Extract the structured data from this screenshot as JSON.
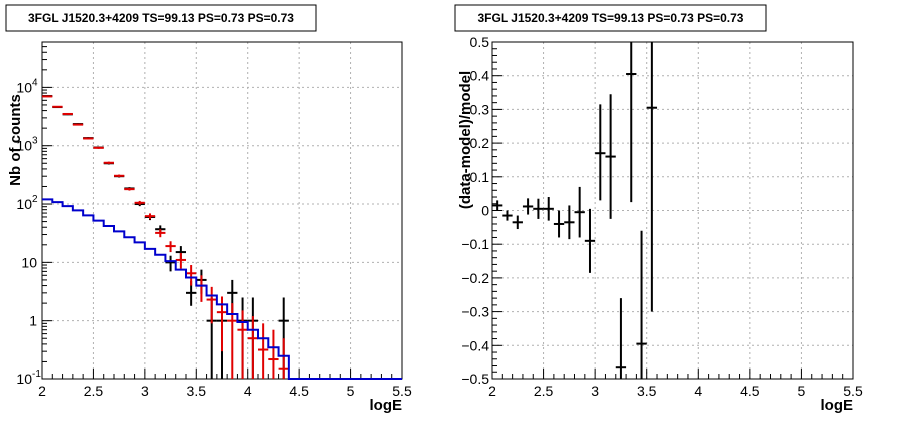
{
  "chart_data": [
    {
      "type": "line",
      "title": "3FGL J1520.3+4209 TS=99.13 PS=0.73 PS=0.73",
      "xlabel": "logE",
      "ylabel": "Nb of counts",
      "xlim": [
        2,
        5.5
      ],
      "ylim": [
        0.1,
        60000
      ],
      "log_y": true,
      "grid": true,
      "x_ticks": [
        "2",
        "2.5",
        "3",
        "3.5",
        "4",
        "4.5",
        "5",
        "5.5"
      ],
      "y_ticks": [
        {
          "value": 0.1,
          "label": "10",
          "exp": "-1"
        },
        {
          "value": 1,
          "label": "1",
          "exp": ""
        },
        {
          "value": 10,
          "label": "10",
          "exp": ""
        },
        {
          "value": 100,
          "label": "10",
          "exp": "2"
        },
        {
          "value": 1000,
          "label": "10",
          "exp": "3"
        },
        {
          "value": 10000,
          "label": "10",
          "exp": "4"
        }
      ],
      "colors": {
        "data": "#000000",
        "model_points": "#e00000",
        "background_model": "#0000cc"
      },
      "series": [
        {
          "kind": "errorbar",
          "color": "#000000",
          "x": [
            2.05,
            2.15,
            2.25,
            2.35,
            2.45,
            2.55,
            2.65,
            2.75,
            2.85,
            2.95,
            3.05,
            3.15,
            3.25,
            3.35,
            3.45,
            3.55,
            3.65,
            3.75,
            3.85,
            3.95,
            4.05,
            4.15,
            4.25,
            4.35
          ],
          "y": [
            7100,
            4600,
            3450,
            2350,
            1350,
            930,
            500,
            300,
            185,
            100,
            60,
            37,
            10,
            15,
            3,
            5,
            1,
            1,
            3,
            1,
            1,
            0,
            0,
            1
          ],
          "y_low": [
            6950,
            4480,
            3350,
            2270,
            1300,
            895,
            477,
            285,
            175,
            92,
            53,
            31,
            7,
            11,
            1.8,
            2.9,
            0.1,
            0.1,
            1.3,
            0.1,
            0.1,
            0,
            0,
            0.1
          ],
          "y_high": [
            7250,
            4720,
            3550,
            2430,
            1400,
            965,
            523,
            315,
            195,
            108,
            67,
            43,
            13,
            19,
            4.8,
            7.5,
            2.5,
            2.5,
            5,
            2.5,
            2.5,
            0,
            0,
            2.5
          ]
        },
        {
          "kind": "errorbar",
          "color": "#e00000",
          "x": [
            2.05,
            2.15,
            2.25,
            2.35,
            2.45,
            2.55,
            2.65,
            2.75,
            2.85,
            2.95,
            3.05,
            3.15,
            3.25,
            3.35,
            3.45,
            3.55,
            3.65,
            3.75,
            3.85,
            3.95,
            4.05,
            4.15,
            4.25,
            4.35
          ],
          "y": [
            7000,
            4650,
            3500,
            2300,
            1330,
            920,
            510,
            305,
            180,
            105,
            62,
            32,
            19,
            11,
            6.5,
            4,
            2.3,
            1.4,
            1,
            0.7,
            0.5,
            0.32,
            0.22,
            0.15
          ],
          "y_low": [
            6850,
            4530,
            3400,
            2220,
            1280,
            885,
            487,
            290,
            170,
            97,
            55,
            27,
            15,
            7.8,
            4,
            2.1,
            0.9,
            0.3,
            0.1,
            0.1,
            0.1,
            0.1,
            0.1,
            0.1
          ],
          "y_high": [
            7150,
            4770,
            3600,
            2380,
            1380,
            955,
            533,
            320,
            190,
            113,
            69,
            37,
            23,
            14.5,
            9,
            6,
            3.8,
            2.6,
            2,
            1.5,
            1.2,
            0.9,
            0.7,
            0.5
          ]
        },
        {
          "kind": "step",
          "color": "#0000cc",
          "x_edges": [
            2.0,
            2.1,
            2.2,
            2.3,
            2.4,
            2.5,
            2.6,
            2.7,
            2.8,
            2.9,
            3.0,
            3.1,
            3.2,
            3.3,
            3.4,
            3.5,
            3.6,
            3.7,
            3.8,
            3.9,
            4.0,
            4.1,
            4.2,
            4.3,
            4.4,
            5.5
          ],
          "y": [
            120,
            108,
            92,
            78,
            64,
            52,
            42,
            34,
            27,
            22,
            17,
            13.5,
            10.5,
            7.5,
            5.5,
            4,
            2.7,
            1.9,
            1.3,
            0.95,
            0.7,
            0.5,
            0.35,
            0.25,
            0.1
          ]
        }
      ]
    },
    {
      "type": "scatter",
      "title": "3FGL J1520.3+4209 TS=99.13 PS=0.73 PS=0.73",
      "xlabel": "logE",
      "ylabel": "(data-model)/model",
      "xlim": [
        2,
        5.5
      ],
      "ylim": [
        -0.5,
        0.5
      ],
      "grid": true,
      "x_ticks": [
        "2",
        "2.5",
        "3",
        "3.5",
        "4",
        "4.5",
        "5",
        "5.5"
      ],
      "y_ticks": [
        {
          "value": -0.5,
          "label": "−0.5"
        },
        {
          "value": -0.4,
          "label": "−0.4"
        },
        {
          "value": -0.3,
          "label": "−0.3"
        },
        {
          "value": -0.2,
          "label": "−0.2"
        },
        {
          "value": -0.1,
          "label": "−0.1"
        },
        {
          "value": 0,
          "label": "0"
        },
        {
          "value": 0.1,
          "label": "0.1"
        },
        {
          "value": 0.2,
          "label": "0.2"
        },
        {
          "value": 0.3,
          "label": "0.3"
        },
        {
          "value": 0.4,
          "label": "0.4"
        },
        {
          "value": 0.5,
          "label": "0.5"
        }
      ],
      "series": [
        {
          "kind": "errorbar",
          "color": "#000000",
          "x": [
            2.05,
            2.15,
            2.25,
            2.35,
            2.45,
            2.55,
            2.65,
            2.75,
            2.85,
            2.95,
            3.05,
            3.15,
            3.25,
            3.35,
            3.45,
            3.55
          ],
          "y": [
            0.015,
            -0.015,
            -0.035,
            0.012,
            0.005,
            0.005,
            -0.04,
            -0.035,
            -0.005,
            -0.09,
            0.17,
            0.16,
            -0.465,
            0.405,
            -0.395,
            0.305
          ],
          "y_low": [
            0.0,
            -0.03,
            -0.055,
            -0.012,
            -0.025,
            -0.03,
            -0.08,
            -0.085,
            -0.08,
            -0.185,
            0.03,
            -0.025,
            -0.6,
            0.025,
            -0.6,
            -0.3
          ],
          "y_high": [
            0.03,
            0.0,
            -0.015,
            0.036,
            0.035,
            0.04,
            0.0,
            0.015,
            0.07,
            0.005,
            0.315,
            0.345,
            -0.26,
            0.6,
            -0.06,
            0.6
          ]
        }
      ]
    }
  ]
}
